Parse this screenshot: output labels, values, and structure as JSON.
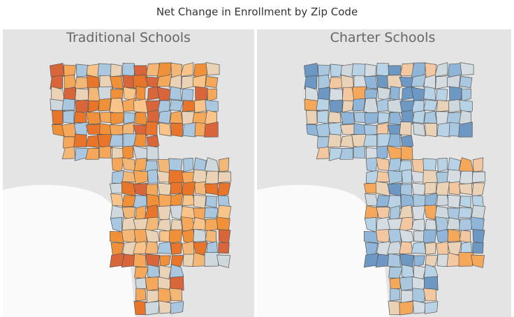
{
  "title": "Net Change in Enrollment by Zip Code",
  "panels": [
    {
      "title": "Traditional Schools"
    },
    {
      "title": "Charter Schools"
    }
  ]
}
